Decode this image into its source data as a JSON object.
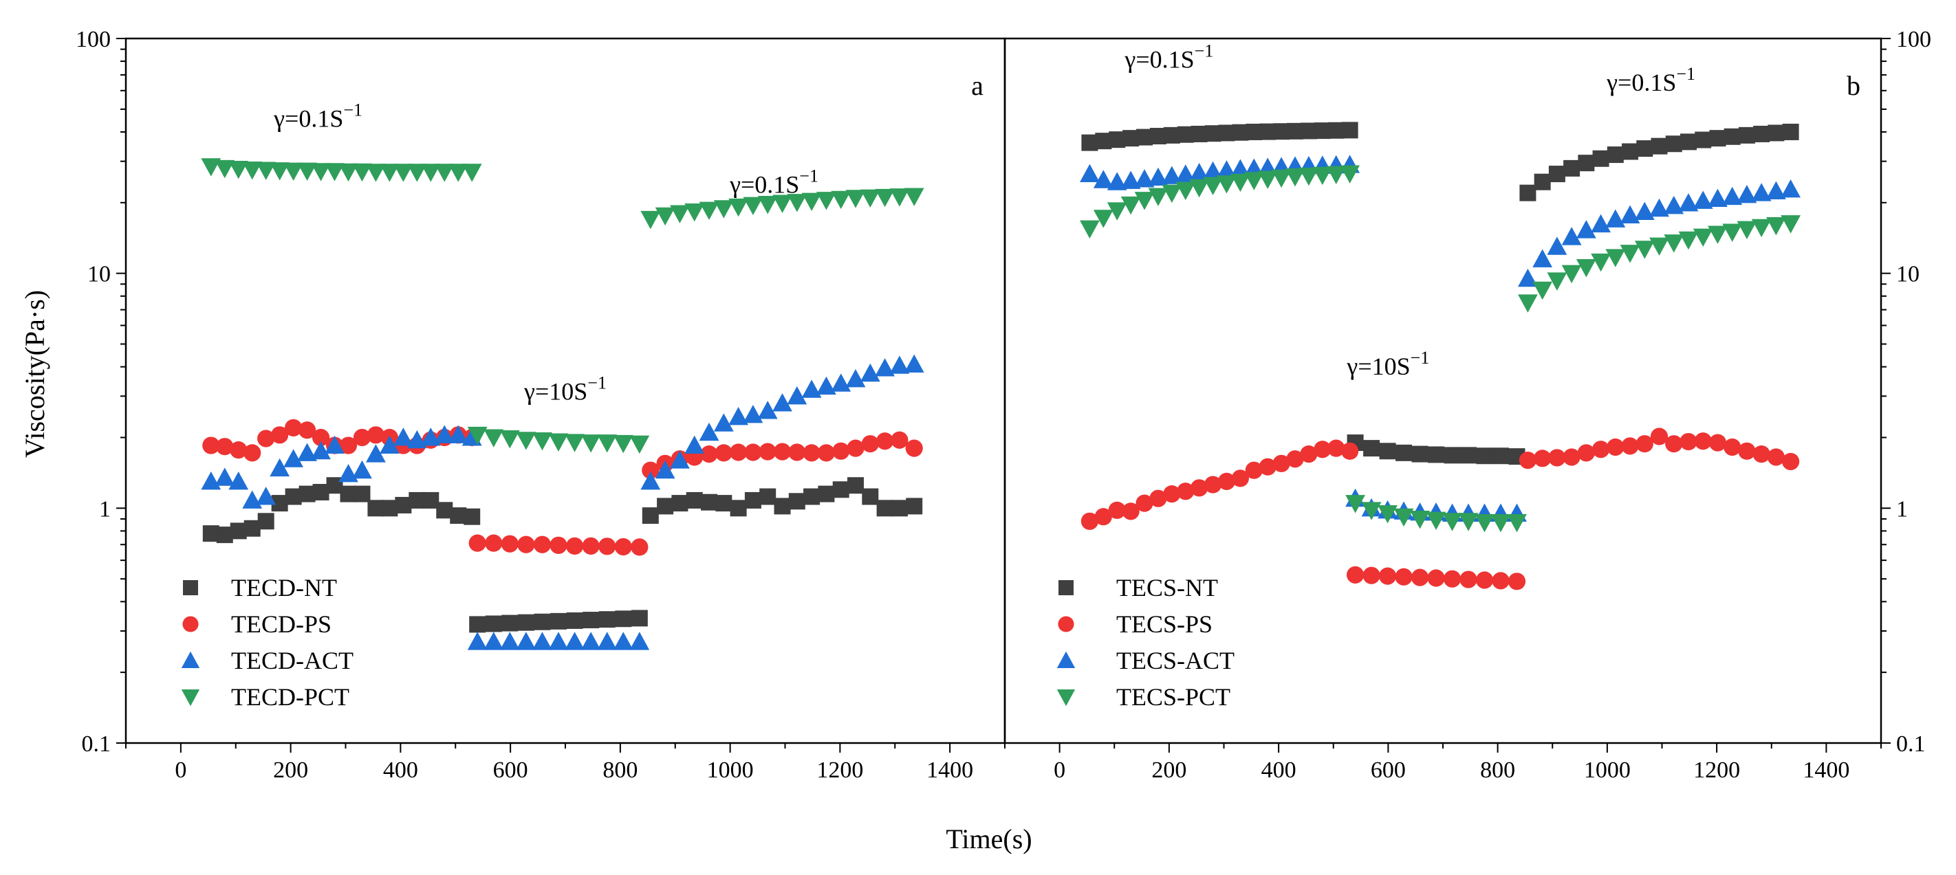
{
  "figure": {
    "ylabel": "Viscosity(Pa·s)",
    "xlabel": "Time(s)"
  },
  "colors": {
    "NT": "#3f3f3f",
    "PS": "#ee3333",
    "ACT": "#1f6fd6",
    "PCT": "#2f9e5a"
  },
  "chart_data": [
    {
      "type": "scatter",
      "panel": "a",
      "ylog": true,
      "ylim": [
        0.1,
        100
      ],
      "xlim": [
        -100,
        1500
      ],
      "yticks": [
        "0.1",
        "1",
        "10",
        "100"
      ],
      "xticks": [
        "0",
        "200",
        "400",
        "600",
        "800",
        "1000",
        "1200",
        "1400"
      ],
      "legend_position": "bottom-left",
      "annotations": [
        {
          "base": "γ=0.1S",
          "sup": "−1",
          "x": 250,
          "y": 42
        },
        {
          "base": "γ=10S",
          "sup": "−1",
          "x": 700,
          "y": 2.9
        },
        {
          "base": "γ=0.1S",
          "sup": "−1",
          "x": 1080,
          "y": 22
        }
      ],
      "series": [
        {
          "name": "TECD-NT",
          "key": "NT",
          "marker": "square",
          "segments": [
            {
              "x0": 55,
              "x1": 530,
              "y": [
                0.78,
                0.77,
                0.8,
                0.82,
                0.88,
                1.05,
                1.12,
                1.15,
                1.17,
                1.25,
                1.15,
                1.15,
                1.0,
                1.0,
                1.03,
                1.08,
                1.08,
                0.98,
                0.93,
                0.92
              ]
            },
            {
              "x0": 540,
              "x1": 835,
              "y": [
                0.32,
                0.322,
                0.324,
                0.326,
                0.328,
                0.33,
                0.332,
                0.334,
                0.336,
                0.338,
                0.34
              ]
            },
            {
              "x0": 855,
              "x1": 1335,
              "y": [
                0.93,
                1.02,
                1.05,
                1.08,
                1.06,
                1.05,
                1.0,
                1.08,
                1.12,
                1.02,
                1.07,
                1.12,
                1.15,
                1.2,
                1.25,
                1.12,
                1.0,
                1.0,
                1.02
              ]
            }
          ]
        },
        {
          "name": "TECD-PS",
          "key": "PS",
          "marker": "circle",
          "segments": [
            {
              "x0": 55,
              "x1": 530,
              "y": [
                1.85,
                1.83,
                1.77,
                1.72,
                1.98,
                2.05,
                2.2,
                2.15,
                2.0,
                1.85,
                1.85,
                2.0,
                2.05,
                2.0,
                1.85,
                1.85,
                1.95,
                2.0,
                2.05,
                2.0
              ]
            },
            {
              "x0": 540,
              "x1": 835,
              "y": [
                0.71,
                0.71,
                0.705,
                0.7,
                0.7,
                0.695,
                0.69,
                0.69,
                0.688,
                0.685,
                0.683
              ]
            },
            {
              "x0": 855,
              "x1": 1335,
              "y": [
                1.45,
                1.55,
                1.62,
                1.65,
                1.7,
                1.72,
                1.73,
                1.73,
                1.74,
                1.74,
                1.73,
                1.72,
                1.72,
                1.75,
                1.8,
                1.88,
                1.93,
                1.95,
                1.8
              ]
            }
          ]
        },
        {
          "name": "TECD-ACT",
          "key": "ACT",
          "marker": "triangle-up",
          "segments": [
            {
              "x0": 55,
              "x1": 530,
              "y": [
                1.3,
                1.35,
                1.3,
                1.08,
                1.12,
                1.48,
                1.62,
                1.72,
                1.75,
                1.85,
                1.4,
                1.45,
                1.7,
                1.85,
                2.0,
                1.95,
                2.0,
                2.05,
                2.05,
                2.0
              ]
            },
            {
              "x0": 540,
              "x1": 835,
              "y": [
                0.27,
                0.27,
                0.27,
                0.27,
                0.27,
                0.27,
                0.27,
                0.27,
                0.27,
                0.27,
                0.27
              ]
            },
            {
              "x0": 855,
              "x1": 1335,
              "y": [
                1.3,
                1.45,
                1.6,
                1.85,
                2.1,
                2.3,
                2.45,
                2.5,
                2.6,
                2.8,
                3.0,
                3.2,
                3.3,
                3.4,
                3.55,
                3.75,
                3.95,
                4.05,
                4.1
              ]
            }
          ]
        },
        {
          "name": "TECD-PCT",
          "key": "PCT",
          "marker": "triangle-down",
          "segments": [
            {
              "x0": 55,
              "x1": 530,
              "y": [
                28.5,
                28.0,
                27.8,
                27.6,
                27.5,
                27.4,
                27.3,
                27.3,
                27.2,
                27.2,
                27.1,
                27.1,
                27.0,
                27.0,
                27.0,
                27.0,
                27.0,
                27.0,
                27.0,
                27.0
              ]
            },
            {
              "x0": 540,
              "x1": 835,
              "y": [
                2.05,
                2.0,
                1.98,
                1.95,
                1.94,
                1.92,
                1.91,
                1.9,
                1.9,
                1.89,
                1.88
              ]
            },
            {
              "x0": 855,
              "x1": 1335,
              "y": [
                17.0,
                17.6,
                18.0,
                18.3,
                18.6,
                18.9,
                19.2,
                19.5,
                19.7,
                19.9,
                20.1,
                20.3,
                20.5,
                20.7,
                20.9,
                21.0,
                21.1,
                21.2,
                21.3
              ]
            }
          ]
        }
      ]
    },
    {
      "type": "scatter",
      "panel": "b",
      "ylog": true,
      "ylim": [
        0.1,
        100
      ],
      "xlim": [
        -100,
        1500
      ],
      "yticks": [
        "0.1",
        "1",
        "10",
        "100"
      ],
      "xticks": [
        "0",
        "200",
        "400",
        "600",
        "800",
        "1000",
        "1200",
        "1400"
      ],
      "legend_position": "bottom-left",
      "annotations": [
        {
          "base": "γ=0.1S",
          "sup": "−1",
          "x": 200,
          "y": 75
        },
        {
          "base": "γ=10S",
          "sup": "−1",
          "x": 600,
          "y": 3.7
        },
        {
          "base": "γ=0.1S",
          "sup": "−1",
          "x": 1080,
          "y": 60
        }
      ],
      "series": [
        {
          "name": "TECS-NT",
          "key": "NT",
          "marker": "square",
          "segments": [
            {
              "x0": 55,
              "x1": 530,
              "y": [
                36.0,
                36.6,
                37.1,
                37.6,
                38.0,
                38.4,
                38.7,
                39.0,
                39.2,
                39.4,
                39.6,
                39.8,
                40.0,
                40.1,
                40.2,
                40.3,
                40.4,
                40.5,
                40.6,
                40.7
              ]
            },
            {
              "x0": 540,
              "x1": 835,
              "y": [
                1.9,
                1.8,
                1.75,
                1.72,
                1.7,
                1.69,
                1.68,
                1.68,
                1.67,
                1.67,
                1.66
              ]
            },
            {
              "x0": 855,
              "x1": 1335,
              "y": [
                22.0,
                24.5,
                26.5,
                28.0,
                29.5,
                30.8,
                32.0,
                33.0,
                34.0,
                34.8,
                35.6,
                36.3,
                37.0,
                37.6,
                38.2,
                38.7,
                39.2,
                39.6,
                40.0
              ]
            }
          ]
        },
        {
          "name": "TECS-PS",
          "key": "PS",
          "marker": "circle",
          "segments": [
            {
              "x0": 55,
              "x1": 530,
              "y": [
                0.88,
                0.92,
                0.98,
                0.97,
                1.05,
                1.1,
                1.15,
                1.18,
                1.22,
                1.26,
                1.3,
                1.34,
                1.45,
                1.5,
                1.55,
                1.62,
                1.7,
                1.78,
                1.8,
                1.75
              ]
            },
            {
              "x0": 540,
              "x1": 835,
              "y": [
                0.52,
                0.517,
                0.514,
                0.51,
                0.507,
                0.504,
                0.5,
                0.497,
                0.494,
                0.491,
                0.488
              ]
            },
            {
              "x0": 855,
              "x1": 1335,
              "y": [
                1.6,
                1.63,
                1.64,
                1.65,
                1.72,
                1.78,
                1.82,
                1.84,
                1.88,
                2.02,
                1.88,
                1.92,
                1.93,
                1.9,
                1.82,
                1.75,
                1.7,
                1.65,
                1.58
              ]
            }
          ]
        },
        {
          "name": "TECS-ACT",
          "key": "ACT",
          "marker": "triangle-up",
          "segments": [
            {
              "x0": 55,
              "x1": 530,
              "y": [
                26.5,
                25.0,
                24.5,
                24.8,
                25.2,
                25.6,
                26.0,
                26.4,
                26.8,
                27.2,
                27.5,
                27.8,
                28.0,
                28.2,
                28.4,
                28.6,
                28.7,
                28.8,
                28.9,
                29.0
              ]
            },
            {
              "x0": 540,
              "x1": 835,
              "y": [
                1.1,
                1.0,
                0.98,
                0.97,
                0.96,
                0.96,
                0.95,
                0.95,
                0.95,
                0.95,
                0.95
              ]
            },
            {
              "x0": 855,
              "x1": 1335,
              "y": [
                9.5,
                11.5,
                13.0,
                14.3,
                15.3,
                16.2,
                17.0,
                17.7,
                18.3,
                18.9,
                19.4,
                19.9,
                20.4,
                20.8,
                21.2,
                21.6,
                22.0,
                22.4,
                22.8
              ]
            }
          ]
        },
        {
          "name": "TECS-PCT",
          "key": "PCT",
          "marker": "triangle-down",
          "segments": [
            {
              "x0": 55,
              "x1": 530,
              "y": [
                15.5,
                17.2,
                18.5,
                19.6,
                20.5,
                21.3,
                22.0,
                22.6,
                23.2,
                23.7,
                24.1,
                24.5,
                24.9,
                25.2,
                25.5,
                25.8,
                26.0,
                26.2,
                26.4,
                26.6
              ]
            },
            {
              "x0": 540,
              "x1": 835,
              "y": [
                1.05,
                0.98,
                0.95,
                0.92,
                0.9,
                0.89,
                0.88,
                0.88,
                0.87,
                0.87,
                0.87
              ]
            },
            {
              "x0": 855,
              "x1": 1335,
              "y": [
                7.5,
                8.5,
                9.3,
                10.0,
                10.6,
                11.2,
                11.7,
                12.2,
                12.7,
                13.1,
                13.5,
                13.9,
                14.3,
                14.7,
                15.0,
                15.4,
                15.7,
                16.0,
                16.3
              ]
            }
          ]
        }
      ]
    }
  ]
}
